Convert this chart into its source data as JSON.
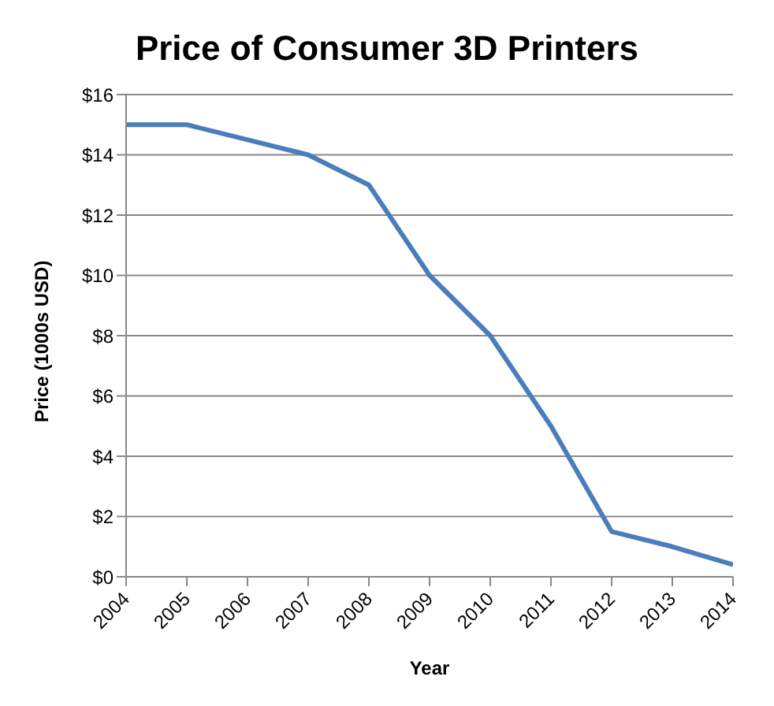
{
  "chart_data": {
    "type": "line",
    "title": "Price of Consumer 3D Printers",
    "xlabel": "Year",
    "ylabel": "Price (1000s USD)",
    "x": [
      2004,
      2005,
      2006,
      2007,
      2008,
      2009,
      2010,
      2011,
      2012,
      2013,
      2014
    ],
    "series": [
      {
        "color": "#4a7ebb",
        "values": [
          15,
          15,
          14.5,
          14,
          13,
          10,
          8,
          5,
          1.5,
          1,
          0.4
        ]
      }
    ],
    "xlim": [
      2004,
      2014
    ],
    "xticks": [
      2004,
      2005,
      2006,
      2007,
      2008,
      2009,
      2010,
      2011,
      2012,
      2013,
      2014
    ],
    "ylim": [
      0,
      16
    ],
    "yticks": [
      {
        "value": 0,
        "label": "$0"
      },
      {
        "value": 2,
        "label": "$2"
      },
      {
        "value": 4,
        "label": "$4"
      },
      {
        "value": 6,
        "label": "$6"
      },
      {
        "value": 8,
        "label": "$8"
      },
      {
        "value": 10,
        "label": "$10"
      },
      {
        "value": 12,
        "label": "$12"
      },
      {
        "value": 14,
        "label": "$14"
      },
      {
        "value": 16,
        "label": "$16"
      }
    ],
    "grid": "y",
    "line_style": "solid"
  }
}
